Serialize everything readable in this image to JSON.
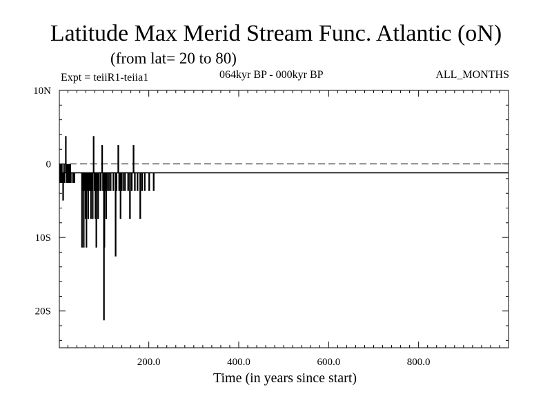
{
  "title": "Latitude Max Merid Stream Func. Atlantic (oN)",
  "subtitle": "(from lat= 20 to 80)",
  "expt_label": "Expt = teiiR1-teiia1",
  "period_label": "064kyr BP - 000kyr BP",
  "months_label": "ALL_MONTHS",
  "chart_data": {
    "type": "line",
    "title": "Latitude Max Merid Stream Func. Atlantic (oN)",
    "subtitle": "(from lat= 20 to 80)",
    "xlabel": "Time (in years since start)",
    "ylabel": "",
    "xlim": [
      1,
      1000
    ],
    "ylim": [
      -25,
      10
    ],
    "x_ticks": [
      200,
      400,
      600,
      800
    ],
    "x_tick_labels": [
      "200.0",
      "400.0",
      "600.0",
      "800.0"
    ],
    "y_ticks": [
      10,
      0,
      -10,
      -20
    ],
    "y_tick_labels": [
      "10N",
      "0",
      "10S",
      "20S"
    ],
    "reference_line": {
      "y": 0,
      "style": "dashed"
    },
    "grid": false,
    "series": [
      {
        "values": [
          -2.5,
          -1.2,
          -0.1,
          -2.5,
          -1.2,
          -0.1,
          -2.5,
          -1.2,
          -4.9,
          -1.2,
          -0.1,
          -2.5,
          -1.2,
          -1.2,
          3.7,
          -0.1,
          -2.5,
          -1.2,
          -0.1,
          -2.5,
          -1.2,
          -0.1,
          -2.5,
          -1.2,
          -0.1,
          -2.5,
          -1.2,
          -1.2,
          -1.2,
          -1.2,
          -2.5,
          -1.2,
          -1.2,
          -2.5,
          -1.2,
          -1.2,
          -1.2,
          -1.2,
          -1.2,
          -1.2,
          -1.2,
          -1.2,
          -1.2,
          -1.2,
          -1.2,
          -1.2,
          -1.2,
          -1.2,
          -1.2,
          -1.2,
          -11.3,
          -1.2,
          -3.6,
          -1.2,
          -11.3,
          -1.2,
          -3.6,
          -1.2,
          -7.4,
          -1.2,
          -11.3,
          -1.2,
          -3.6,
          -1.2,
          -7.4,
          -1.2,
          -3.6,
          -1.2,
          -3.6,
          -1.2,
          -7.4,
          -1.2,
          -3.6,
          -1.2,
          -7.4,
          -1.2,
          3.7,
          -1.2,
          -3.6,
          -1.2,
          -7.4,
          -1.2,
          -11.3,
          -1.2,
          -3.6,
          -1.2,
          -7.4,
          -1.2,
          -3.6,
          -1.2,
          -1.2,
          -1.2,
          -3.6,
          -1.2,
          -1.2,
          2.5,
          -1.2,
          -3.6,
          -1.2,
          -21.2,
          -11.3,
          -1.2,
          -3.6,
          -1.2,
          -7.4,
          -1.2,
          -3.6,
          -1.2,
          -1.2,
          -1.2,
          -3.6,
          -1.2,
          -1.2,
          -1.2,
          -3.6,
          -1.2,
          -1.2,
          -1.2,
          -1.2,
          -1.2,
          -3.6,
          -1.2,
          -1.2,
          -1.2,
          -1.2,
          -12.5,
          -1.2,
          -3.6,
          -1.2,
          -1.2,
          -1.2,
          2.5,
          -1.2,
          -3.6,
          -1.2,
          -1.2,
          -7.4,
          -1.2,
          -3.6,
          -1.2,
          -1.2,
          -1.2,
          -3.6,
          -1.2,
          -1.2,
          -1.2,
          -3.6,
          -1.2,
          -1.2,
          -1.2,
          -1.2,
          -1.2,
          -1.2,
          -3.6,
          -1.2,
          -1.2,
          -1.2,
          -7.4,
          -1.2,
          -1.2,
          -1.2,
          -3.6,
          -1.2,
          -1.2,
          -1.2,
          2.5,
          -1.2,
          -1.2,
          -3.6,
          -1.2,
          -1.2,
          -1.2,
          -1.2,
          -1.2,
          -3.6,
          -1.2,
          -1.2,
          -1.2,
          -1.2,
          -1.2,
          -7.4,
          -1.2,
          -1.2,
          -1.2,
          -3.6,
          -1.2,
          -1.2,
          -1.2,
          -1.2,
          -1.2,
          -3.6,
          -1.2,
          -1.2,
          -1.2,
          -1.2,
          -1.2,
          -1.2,
          -1.2,
          -1.2,
          -1.2,
          -3.6,
          -1.2,
          -1.2,
          -1.2,
          -1.2,
          -1.2,
          -1.2,
          -1.2,
          -1.2,
          -1.2,
          -3.6,
          -1.2,
          -1.2,
          -1.2,
          -1.2,
          -1.2,
          -1.2,
          -1.2,
          -1.2,
          -1.2,
          -1.2,
          -1.2,
          -1.2,
          -1.2,
          -1.2,
          -1.2,
          -1.2,
          -1.2,
          -1.2,
          -1.2,
          -1.2,
          -1.2,
          -1.2,
          -1.2,
          -1.2,
          -1.2,
          -1.2,
          -1.2,
          -1.2,
          -1.2,
          -1.2,
          -1.2,
          -1.2,
          -1.2,
          -1.2,
          -1.2,
          -1.2,
          -1.2,
          -1.2,
          -1.2,
          -1.2,
          -1.2,
          -1.2,
          -1.2,
          -1.2,
          -1.2,
          -1.2,
          -1.2,
          -1.2,
          -1.2,
          -1.2,
          -1.2,
          -1.2,
          -1.2,
          -1.2,
          -1.2,
          -1.2,
          -1.2,
          -1.2,
          -1.2,
          -1.2,
          -1.2,
          -1.2,
          -1.2,
          -1.2,
          -1.2,
          -1.2,
          -1.2,
          -1.2,
          -1.2,
          -1.2,
          -1.2,
          -1.2,
          -1.2,
          -1.2,
          -1.2,
          -1.2,
          -1.2,
          -1.2,
          -1.2,
          -1.2,
          -1.2,
          -1.2,
          -1.2,
          -1.2,
          -1.2,
          -1.2,
          -1.2,
          -1.2,
          -1.2,
          -1.2,
          -1.2,
          -1.2,
          -1.2,
          -1.2,
          -1.2,
          -1.2,
          -1.2,
          -1.2,
          -1.2,
          -1.2,
          -1.2,
          -1.2,
          -1.2,
          -1.2,
          -1.2,
          -1.2,
          -1.2,
          -1.2,
          -1.2,
          -1.2,
          -1.2,
          -1.2,
          -1.2,
          -1.2,
          -1.2,
          -1.2,
          -1.2,
          -1.2,
          -1.2,
          -1.2,
          -1.2,
          -1.2,
          -1.2,
          -1.2,
          -1.2,
          -1.2,
          -1.2,
          -1.2,
          -1.2,
          -1.2,
          -1.2,
          -1.2,
          -1.2,
          -1.2,
          -1.2,
          -1.2,
          -1.2,
          -1.2,
          -1.2,
          -1.2,
          -1.2,
          -1.2,
          -1.2,
          -1.2,
          -1.2,
          -1.2,
          -1.2,
          -1.2,
          -1.2,
          -1.2,
          -1.2,
          -1.2,
          -1.2,
          -1.2,
          -1.2,
          -1.2,
          -1.2,
          -1.2,
          -1.2,
          -1.2,
          -1.2,
          -1.2,
          -1.2,
          -1.2,
          -1.2,
          -1.2,
          -1.2,
          -1.2,
          -1.2,
          -1.2,
          -1.2,
          -1.2,
          -1.2,
          -1.2,
          -1.2,
          -1.2,
          -1.2,
          -1.2,
          -1.2,
          -1.2,
          -1.2,
          -1.2,
          -1.2,
          -1.2,
          -1.2,
          -1.2,
          -1.2,
          -1.2,
          -1.2,
          -1.2,
          -1.2,
          -1.2,
          -1.2,
          -1.2,
          -1.2,
          -1.2,
          -1.2,
          -1.2,
          -1.2,
          -1.2,
          -1.2,
          -1.2,
          -1.2,
          -1.2,
          -1.2,
          -1.2,
          -1.2,
          -1.2,
          -1.2,
          -1.2,
          -1.2,
          -1.2,
          -1.2,
          -1.2,
          -1.2,
          -1.2,
          -1.2,
          -1.2,
          -1.2,
          -1.2,
          -1.2,
          -1.2,
          -1.2,
          -1.2,
          -1.2,
          -1.2,
          -1.2,
          -1.2,
          -1.2,
          -1.2,
          -1.2,
          -1.2,
          -1.2,
          -1.2,
          -1.2,
          -1.2,
          -1.2,
          -1.2,
          -1.2,
          -1.2,
          -1.2,
          -1.2,
          -1.2,
          -1.2,
          -1.2,
          -1.2,
          -1.2,
          -1.2,
          -1.2,
          -1.2,
          -1.2,
          -1.2,
          -1.2,
          -1.2,
          -1.2,
          -1.2,
          -1.2,
          -1.2,
          -1.2,
          -1.2,
          -1.2,
          -1.2,
          -1.2,
          -1.2,
          -1.2,
          -1.2,
          -1.2,
          -1.2,
          -1.2,
          -1.2,
          -1.2,
          -1.2,
          -1.2,
          -1.2,
          -1.2,
          -1.2,
          -1.2,
          -1.2,
          -1.2,
          -1.2,
          -1.2,
          -1.2,
          -1.2,
          -1.2,
          -1.2,
          -1.2,
          -1.2,
          -1.2,
          -1.2,
          -1.2,
          -1.2,
          -1.2,
          -1.2,
          -1.2,
          -1.2,
          -1.2,
          -1.2,
          -1.2,
          -1.2,
          -1.2,
          -1.2,
          -1.2,
          -1.2,
          -1.2,
          -1.2,
          -1.2,
          -1.2,
          -1.2,
          -1.2,
          -1.2,
          -1.2,
          -1.2,
          -1.2,
          -1.2,
          -1.2,
          -1.2,
          -1.2,
          -1.2,
          -1.2,
          -1.2,
          -1.2,
          -1.2,
          -1.2,
          -1.2,
          -1.2,
          -1.2,
          -1.2,
          -1.2,
          -1.2,
          -1.2,
          -1.2,
          -1.2,
          -1.2,
          -1.2,
          -1.2,
          -1.2,
          -1.2,
          -1.2,
          -1.2,
          -1.2,
          -1.2,
          -1.2,
          -1.2,
          -1.2,
          -1.2,
          -1.2,
          -1.2,
          -1.2,
          -1.2,
          -1.2,
          -1.2,
          -1.2,
          -1.2,
          -1.2,
          -1.2,
          -1.2,
          -1.2,
          -1.2,
          -1.2,
          -1.2,
          -1.2,
          -1.2,
          -1.2,
          -1.2,
          -1.2,
          -1.2,
          -1.2,
          -1.2,
          -1.2,
          -1.2,
          -1.2,
          -1.2,
          -1.2,
          -1.2,
          -1.2,
          -1.2,
          -1.2,
          -1.2,
          -1.2,
          -1.2,
          -1.2,
          -1.2,
          -1.2,
          -1.2,
          -1.2,
          -1.2,
          -1.2,
          -1.2,
          -1.2,
          -1.2,
          -1.2,
          -1.2,
          -1.2,
          -1.2,
          -1.2,
          -1.2,
          -1.2,
          -1.2,
          -1.2,
          -1.2,
          -1.2,
          -1.2,
          -1.2,
          -1.2,
          -1.2,
          -1.2,
          -1.2,
          -1.2,
          -1.2,
          -1.2,
          -1.2,
          -1.2,
          -1.2,
          -1.2,
          -1.2,
          -1.2,
          -1.2,
          -1.2,
          -1.2,
          -1.2,
          -1.2,
          -1.2,
          -1.2,
          -1.2,
          -1.2,
          -1.2,
          -1.2,
          -1.2,
          -1.2,
          -1.2,
          -1.2,
          -1.2,
          -1.2,
          -1.2,
          -1.2,
          -1.2,
          -1.2,
          -1.2,
          -1.2,
          -1.2,
          -1.2,
          -1.2,
          -1.2,
          -1.2,
          -1.2,
          -1.2,
          -1.2,
          -1.2,
          -1.2,
          -1.2,
          -1.2,
          -1.2,
          -1.2,
          -1.2,
          -1.2,
          -1.2,
          -1.2,
          -1.2,
          -1.2,
          -1.2,
          -1.2,
          -1.2,
          -1.2,
          -1.2,
          -1.2,
          -1.2,
          -1.2,
          -1.2,
          -1.2,
          -1.2,
          -1.2,
          -1.2,
          -1.2,
          -1.2,
          -1.2,
          -1.2,
          -1.2,
          -1.2,
          -1.2,
          -1.2,
          -1.2,
          -1.2,
          -1.2,
          -1.2,
          -1.2,
          -1.2,
          -1.2,
          -1.2,
          -1.2,
          -1.2,
          -1.2,
          -1.2,
          -1.2,
          -1.2,
          -1.2,
          -1.2,
          -1.2,
          -1.2,
          -1.2,
          -1.2,
          -1.2,
          -1.2,
          -1.2,
          -1.2,
          -1.2,
          -1.2,
          -1.2,
          -1.2,
          -1.2,
          -1.2,
          -1.2,
          -1.2,
          -1.2,
          -1.2,
          -1.2,
          -1.2,
          -1.2,
          -1.2,
          -1.2,
          -1.2,
          -1.2,
          -1.2,
          -1.2,
          -1.2,
          -1.2,
          -1.2,
          -1.2,
          -1.2,
          -1.2,
          -1.2,
          -1.2,
          -1.2,
          -1.2,
          -1.2,
          -1.2,
          -1.2,
          -1.2,
          -1.2,
          -1.2,
          -1.2,
          -1.2,
          -1.2,
          -1.2,
          -1.2,
          -1.2,
          -1.2,
          -1.2,
          -1.2,
          -1.2,
          -1.2,
          -1.2,
          -1.2,
          -1.2,
          -1.2,
          -1.2,
          -1.2,
          -1.2,
          -1.2,
          -1.2,
          -1.2,
          -1.2,
          -1.2,
          -1.2,
          -1.2,
          -1.2,
          -1.2,
          -1.2,
          -1.2,
          -1.2,
          -1.2,
          -1.2,
          -1.2,
          -1.2,
          -1.2,
          -1.2,
          -1.2,
          -1.2,
          -1.2,
          -1.2,
          -1.2,
          -1.2,
          -1.2,
          -1.2,
          -1.2,
          -1.2,
          -1.2,
          -1.2,
          -1.2,
          -1.2,
          -1.2,
          -1.2,
          -1.2,
          -1.2,
          -1.2,
          -1.2,
          -1.2,
          -1.2,
          -1.2,
          -1.2,
          -1.2,
          -1.2,
          -1.2,
          -1.2,
          -1.2,
          -1.2,
          -1.2,
          -1.2,
          -1.2,
          -1.2,
          -1.2,
          -1.2,
          -1.2,
          -1.2,
          -1.2,
          -1.2,
          -1.2,
          -1.2,
          -1.2,
          -1.2,
          -1.2,
          -1.2,
          -1.2,
          -1.2,
          -1.2,
          -1.2,
          -1.2,
          -1.2,
          -1.2,
          -1.2,
          -1.2,
          -1.2,
          -1.2,
          -1.2,
          -1.2,
          -1.2,
          -1.2,
          -1.2,
          -1.2,
          -1.2,
          -1.2,
          -1.2,
          -1.2,
          -1.2,
          -1.2,
          -1.2,
          -1.2,
          -1.2,
          -1.2,
          -1.2,
          -1.2,
          -1.2,
          -1.2,
          -1.2,
          -1.2,
          -1.2,
          -1.2,
          -1.2,
          -1.2,
          -1.2,
          -1.2,
          -1.2,
          -1.2,
          -1.2,
          -1.2,
          -1.2,
          -1.2,
          -1.2,
          -1.2,
          -1.2,
          -1.2,
          -1.2,
          -1.2,
          -1.2,
          -1.2,
          -1.2,
          -1.2,
          -1.2,
          -1.2,
          -1.2,
          -1.2,
          -1.2,
          -1.2,
          -1.2,
          -1.2,
          -1.2,
          -1.2,
          -1.2,
          -1.2,
          -1.2,
          -1.2,
          -1.2,
          -1.2,
          -1.2,
          -1.2,
          -1.2,
          -1.2,
          -1.2,
          -1.2,
          -1.2,
          -1.2,
          -1.2,
          -1.2,
          -1.2,
          -1.2,
          -1.2,
          -1.2,
          -1.2,
          -1.2,
          -1.2,
          -1.2,
          -1.2,
          -1.2,
          -1.2,
          -1.2,
          -1.2,
          -1.2,
          -1.2,
          -1.2,
          -1.2,
          -1.2,
          -1.2,
          -1.2,
          -1.2,
          -1.2,
          -1.2,
          -1.2,
          -1.2,
          -1.2,
          -1.2,
          -1.2,
          -1.2,
          -1.2,
          -1.2,
          -1.2,
          -1.2,
          -1.2,
          -1.2,
          -1.2,
          -1.2,
          -1.2,
          -1.2,
          -1.2,
          -1.2,
          -1.2,
          -1.2,
          -1.2,
          -1.2,
          -1.2,
          -1.2,
          -1.2,
          -1.2,
          -1.2,
          -1.2,
          -1.2,
          -1.2,
          -1.2,
          -1.2,
          -1.2,
          -1.2,
          -1.2,
          -1.2,
          -1.2,
          -1.2,
          -1.2,
          -1.2,
          -1.2,
          -1.2,
          -1.2,
          -1.2,
          -1.2,
          -1.2,
          -1.2,
          -1.2,
          -1.2,
          -1.2,
          -1.2,
          -1.2,
          -1.2,
          -1.2,
          -1.2,
          -1.2,
          -1.2,
          -1.2,
          -1.2,
          -1.2,
          -1.2,
          -1.2,
          -1.2,
          -1.2,
          -1.2,
          -1.2
        ]
      }
    ],
    "line_color": "#000000"
  }
}
